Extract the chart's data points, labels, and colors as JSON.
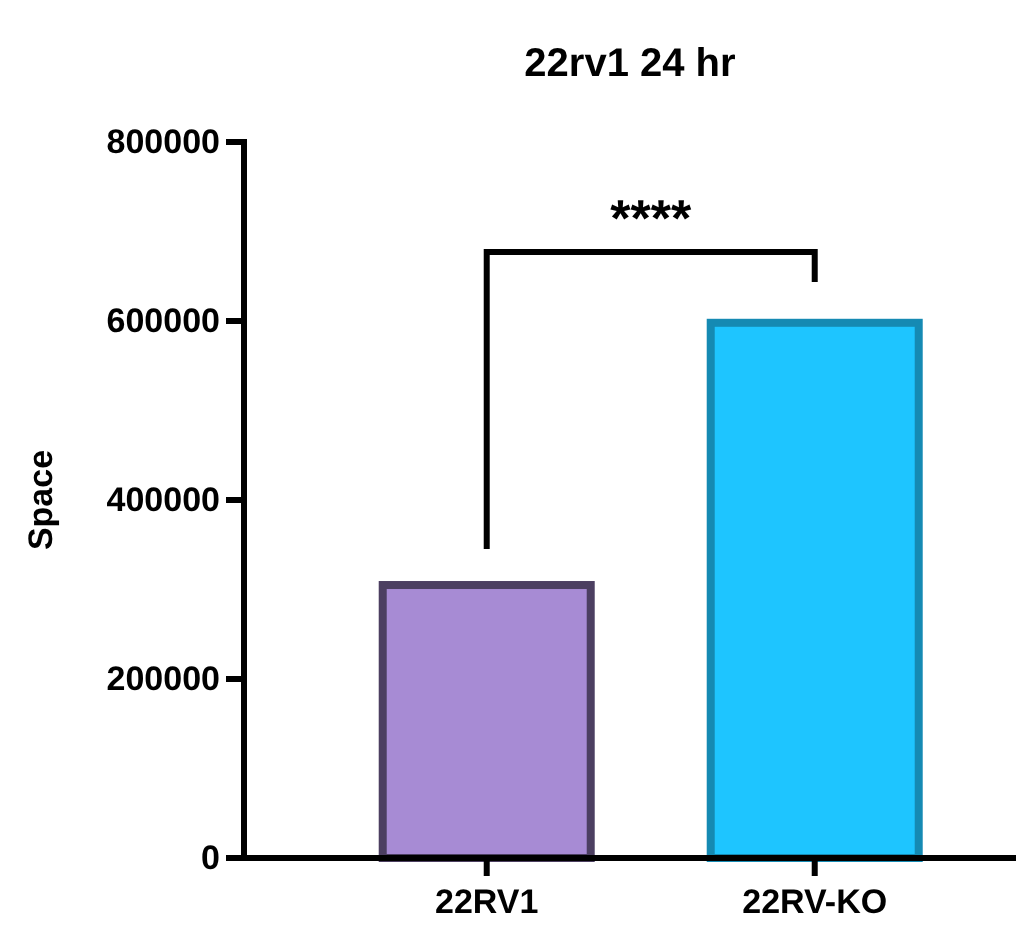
{
  "chart_data": {
    "type": "bar",
    "title": "22rv1 24 hr",
    "ylabel": "Space",
    "categories": [
      "22RV1",
      "22RV-KO"
    ],
    "values": [
      305000,
      598000
    ],
    "colors": [
      "#a78bd4",
      "#1ec5ff"
    ],
    "ylim": [
      0,
      800000
    ],
    "yticks": [
      0,
      200000,
      400000,
      600000,
      800000
    ],
    "grid": false,
    "legend": false,
    "annotations": [
      "****"
    ]
  }
}
